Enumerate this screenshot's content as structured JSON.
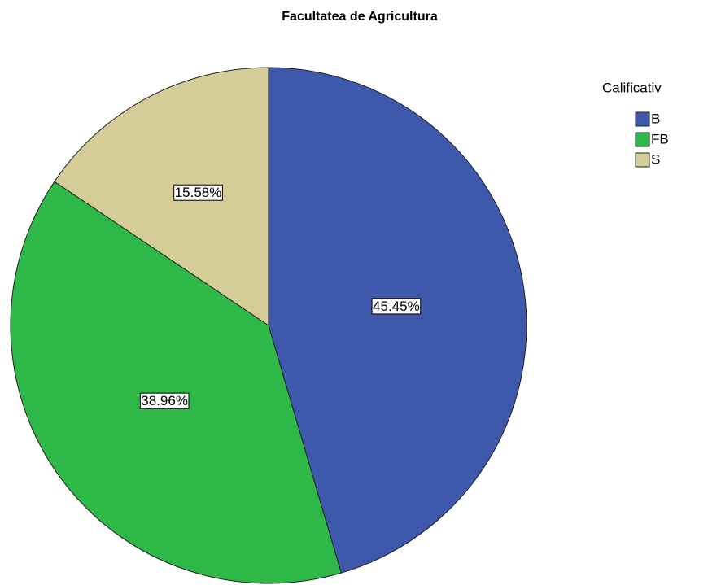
{
  "chart_data": {
    "type": "pie",
    "title": "Facultatea de Agricultura",
    "legend_title": "Calificativ",
    "categories": [
      "B",
      "FB",
      "S"
    ],
    "values": [
      45.45,
      38.96,
      15.58
    ],
    "value_labels": [
      "45.45%",
      "38.96%",
      "15.58%"
    ],
    "colors": [
      "#3e58ac",
      "#2eb848",
      "#d4cd98"
    ],
    "legend": "top-right"
  }
}
